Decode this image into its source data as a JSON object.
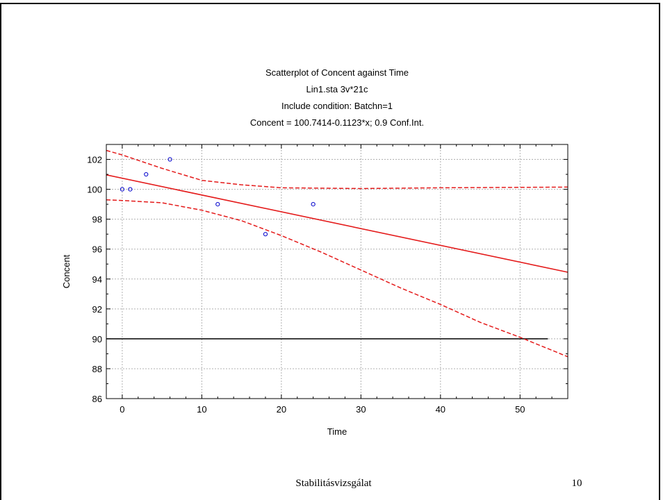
{
  "chart_data": {
    "type": "scatter",
    "title_lines": [
      "Scatterplot of Concent against Time",
      "Lin1.sta 3v*21c",
      "Include condition: Batchn=1",
      "Concent = 100.7414-0.1123*x; 0.9 Conf.Int."
    ],
    "xlabel": "Time",
    "ylabel": "Concent",
    "xlim": [
      -2,
      56
    ],
    "ylim": [
      86,
      103
    ],
    "xticks": [
      0,
      10,
      20,
      30,
      40,
      50
    ],
    "yticks": [
      86,
      88,
      90,
      92,
      94,
      96,
      98,
      100,
      102
    ],
    "grid": true,
    "points": [
      {
        "x": 0,
        "y": 100
      },
      {
        "x": 1,
        "y": 100
      },
      {
        "x": 3,
        "y": 101
      },
      {
        "x": 6,
        "y": 102
      },
      {
        "x": 12,
        "y": 99
      },
      {
        "x": 18,
        "y": 97
      },
      {
        "x": 24,
        "y": 99
      }
    ],
    "regression": {
      "intercept": 100.7414,
      "slope": -0.1123
    },
    "conf_upper": [
      {
        "x": -2,
        "y": 102.6
      },
      {
        "x": 0,
        "y": 102.3
      },
      {
        "x": 5,
        "y": 101.4
      },
      {
        "x": 10,
        "y": 100.6
      },
      {
        "x": 15,
        "y": 100.3
      },
      {
        "x": 20,
        "y": 100.1
      },
      {
        "x": 30,
        "y": 100.05
      },
      {
        "x": 40,
        "y": 100.1
      },
      {
        "x": 56,
        "y": 100.15
      }
    ],
    "conf_lower": [
      {
        "x": -2,
        "y": 99.3
      },
      {
        "x": 0,
        "y": 99.25
      },
      {
        "x": 5,
        "y": 99.1
      },
      {
        "x": 10,
        "y": 98.6
      },
      {
        "x": 15,
        "y": 97.9
      },
      {
        "x": 20,
        "y": 96.9
      },
      {
        "x": 25,
        "y": 95.8
      },
      {
        "x": 30,
        "y": 94.6
      },
      {
        "x": 35,
        "y": 93.4
      },
      {
        "x": 40,
        "y": 92.3
      },
      {
        "x": 45,
        "y": 91.1
      },
      {
        "x": 50,
        "y": 90.1
      },
      {
        "x": 56,
        "y": 88.8
      }
    ],
    "reference_line": {
      "y": 90,
      "x_start": -2,
      "x_end": 53.5
    },
    "colors": {
      "points": "#0000cc",
      "fit": "#e41a1a",
      "conf": "#e41a1a",
      "reference": "#000000",
      "grid": "#b0b0b0"
    }
  },
  "footer": {
    "title": "Stabilitásvizsgálat",
    "page_number": "10"
  }
}
